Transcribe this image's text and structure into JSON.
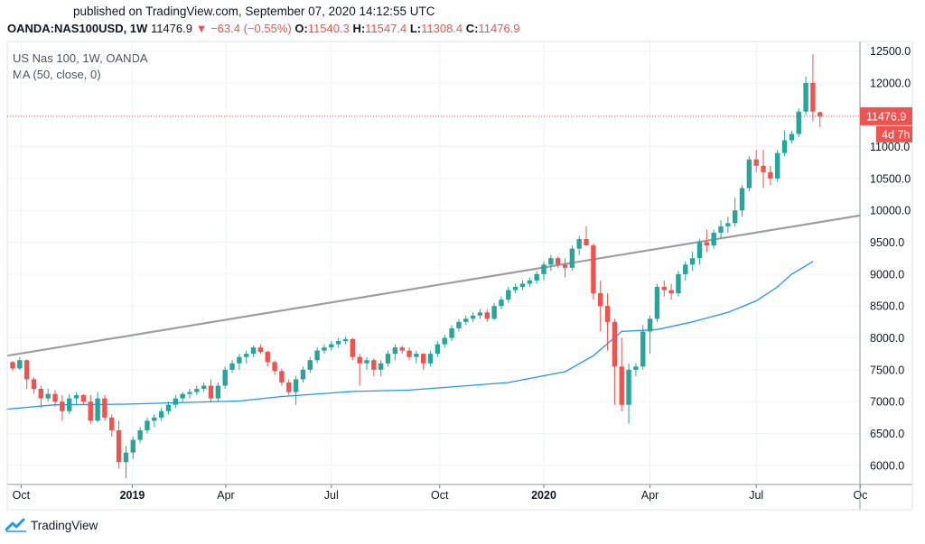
{
  "header": {
    "published": "published on TradingView.com, September 07, 2020 14:12:55 UTC",
    "symbol": "OANDA:NAS100USD, 1W",
    "last": "11476.9",
    "change": "−63.4 (−0.55%)",
    "o_label": "O:",
    "o_value": "11540.3",
    "h_label": "H:",
    "h_value": "11547.4",
    "l_label": "L:",
    "l_value": "11308.4",
    "c_label": "C:",
    "c_value": "11476.9"
  },
  "legend": {
    "title": "US Nas 100, 1W, OANDA",
    "indicator": "MA (50, close, 0)"
  },
  "footer": {
    "brand": "TradingView"
  },
  "colors": {
    "up": "#26a69a",
    "down": "#ef5350",
    "ma": "#2196f3",
    "trendline": "#9e9e9e",
    "grid": "#f0f3fa",
    "axis": "#e0e3eb",
    "text": "#131722"
  },
  "chart_data": {
    "type": "candlestick",
    "interval": "1W",
    "y_ticks": [
      "12500.0",
      "12000.0",
      "11500.0",
      "11000.0",
      "10500.0",
      "10000.0",
      "9500.0",
      "9000.0",
      "8500.0",
      "8000.0",
      "7500.0",
      "7000.0",
      "6500.0",
      "6000.0"
    ],
    "x_ticks": [
      "Oct",
      "2019",
      "Apr",
      "Jul",
      "Oct",
      "2020",
      "Apr",
      "Jul",
      "Oc"
    ],
    "ylim": [
      5700,
      12650
    ],
    "last_price_label": "11476.9",
    "countdown_label": "4d 7h",
    "candles": [
      [
        7620,
        7640,
        7480,
        7520
      ],
      [
        7520,
        7700,
        7500,
        7650
      ],
      [
        7650,
        7660,
        7200,
        7350
      ],
      [
        7350,
        7380,
        7120,
        7200
      ],
      [
        7200,
        7250,
        6900,
        7050
      ],
      [
        7050,
        7200,
        7000,
        7120
      ],
      [
        7120,
        7180,
        6920,
        7000
      ],
      [
        7000,
        7100,
        6700,
        6850
      ],
      [
        6850,
        7120,
        6800,
        7050
      ],
      [
        7050,
        7150,
        6950,
        7100
      ],
      [
        7100,
        7120,
        6950,
        7000
      ],
      [
        7000,
        7100,
        6650,
        6700
      ],
      [
        6700,
        7150,
        6680,
        7050
      ],
      [
        7050,
        7100,
        6700,
        6750
      ],
      [
        6750,
        6800,
        6450,
        6550
      ],
      [
        6550,
        6700,
        5950,
        6050
      ],
      [
        6050,
        6300,
        5800,
        6200
      ],
      [
        6200,
        6450,
        6100,
        6400
      ],
      [
        6400,
        6600,
        6350,
        6550
      ],
      [
        6550,
        6750,
        6500,
        6700
      ],
      [
        6700,
        6800,
        6600,
        6750
      ],
      [
        6750,
        6900,
        6700,
        6850
      ],
      [
        6850,
        7000,
        6800,
        6950
      ],
      [
        6950,
        7100,
        6900,
        7050
      ],
      [
        7050,
        7150,
        7000,
        7120
      ],
      [
        7120,
        7200,
        7050,
        7150
      ],
      [
        7150,
        7250,
        7100,
        7200
      ],
      [
        7200,
        7300,
        7150,
        7250
      ],
      [
        7250,
        7350,
        7000,
        7050
      ],
      [
        7050,
        7300,
        7000,
        7250
      ],
      [
        7250,
        7550,
        7200,
        7500
      ],
      [
        7500,
        7650,
        7450,
        7600
      ],
      [
        7600,
        7750,
        7500,
        7700
      ],
      [
        7700,
        7800,
        7600,
        7750
      ],
      [
        7750,
        7880,
        7700,
        7850
      ],
      [
        7850,
        7900,
        7750,
        7780
      ],
      [
        7780,
        7800,
        7550,
        7620
      ],
      [
        7620,
        7650,
        7420,
        7480
      ],
      [
        7480,
        7520,
        7250,
        7300
      ],
      [
        7300,
        7350,
        7100,
        7150
      ],
      [
        7150,
        7400,
        6950,
        7350
      ],
      [
        7350,
        7550,
        7300,
        7500
      ],
      [
        7500,
        7700,
        7450,
        7650
      ],
      [
        7650,
        7850,
        7600,
        7800
      ],
      [
        7800,
        7900,
        7750,
        7850
      ],
      [
        7850,
        7950,
        7800,
        7900
      ],
      [
        7900,
        8000,
        7850,
        7950
      ],
      [
        7950,
        8020,
        7900,
        7980
      ],
      [
        7980,
        8000,
        7650,
        7700
      ],
      [
        7700,
        7750,
        7250,
        7600
      ],
      [
        7600,
        7700,
        7500,
        7650
      ],
      [
        7650,
        7680,
        7400,
        7500
      ],
      [
        7500,
        7650,
        7400,
        7600
      ],
      [
        7600,
        7800,
        7550,
        7750
      ],
      [
        7750,
        7900,
        7650,
        7850
      ],
      [
        7850,
        7880,
        7750,
        7800
      ],
      [
        7800,
        7850,
        7650,
        7700
      ],
      [
        7700,
        7800,
        7600,
        7750
      ],
      [
        7750,
        7760,
        7500,
        7600
      ],
      [
        7600,
        7800,
        7550,
        7750
      ],
      [
        7750,
        7950,
        7700,
        7900
      ],
      [
        7900,
        8050,
        7850,
        8000
      ],
      [
        8000,
        8200,
        7950,
        8150
      ],
      [
        8150,
        8300,
        8100,
        8250
      ],
      [
        8250,
        8350,
        8200,
        8300
      ],
      [
        8300,
        8400,
        8250,
        8350
      ],
      [
        8350,
        8450,
        8300,
        8400
      ],
      [
        8400,
        8450,
        8250,
        8300
      ],
      [
        8300,
        8550,
        8280,
        8500
      ],
      [
        8500,
        8650,
        8450,
        8600
      ],
      [
        8600,
        8800,
        8550,
        8750
      ],
      [
        8750,
        8850,
        8700,
        8800
      ],
      [
        8800,
        8900,
        8750,
        8850
      ],
      [
        8850,
        8950,
        8800,
        8900
      ],
      [
        8900,
        9050,
        8850,
        9000
      ],
      [
        9000,
        9200,
        8900,
        9150
      ],
      [
        9150,
        9300,
        9050,
        9250
      ],
      [
        9250,
        9280,
        9100,
        9150
      ],
      [
        9150,
        9250,
        8950,
        9100
      ],
      [
        9100,
        9450,
        9050,
        9400
      ],
      [
        9400,
        9600,
        9300,
        9550
      ],
      [
        9550,
        9750,
        9450,
        9450
      ],
      [
        9450,
        9480,
        8600,
        8700
      ],
      [
        8700,
        8900,
        8100,
        8500
      ],
      [
        8500,
        8700,
        7800,
        8250
      ],
      [
        8250,
        8300,
        6950,
        7550
      ],
      [
        7550,
        8000,
        6850,
        6950
      ],
      [
        6950,
        7600,
        6650,
        7500
      ],
      [
        7500,
        7600,
        7400,
        7550
      ],
      [
        7550,
        8200,
        7500,
        8100
      ],
      [
        8100,
        8350,
        7750,
        8300
      ],
      [
        8300,
        8850,
        8250,
        8800
      ],
      [
        8800,
        8900,
        8650,
        8750
      ],
      [
        8750,
        8850,
        8600,
        8700
      ],
      [
        8700,
        9050,
        8650,
        9000
      ],
      [
        9000,
        9200,
        8900,
        9150
      ],
      [
        9150,
        9350,
        9050,
        9250
      ],
      [
        9250,
        9550,
        9150,
        9500
      ],
      [
        9500,
        9700,
        9350,
        9450
      ],
      [
        9450,
        9700,
        9400,
        9650
      ],
      [
        9650,
        9850,
        9550,
        9750
      ],
      [
        9750,
        9900,
        9650,
        9800
      ],
      [
        9800,
        10200,
        9750,
        10000
      ],
      [
        10000,
        10400,
        9900,
        10350
      ],
      [
        10350,
        10850,
        10300,
        10800
      ],
      [
        10800,
        10950,
        10600,
        10700
      ],
      [
        10700,
        10950,
        10350,
        10600
      ],
      [
        10600,
        10700,
        10400,
        10500
      ],
      [
        10500,
        10950,
        10450,
        10900
      ],
      [
        10900,
        11250,
        10850,
        11100
      ],
      [
        11100,
        11250,
        11050,
        11200
      ],
      [
        11200,
        11600,
        11150,
        11550
      ],
      [
        11550,
        12100,
        11500,
        12000
      ],
      [
        12000,
        12450,
        11400,
        11550
      ],
      [
        11540.3,
        11547.4,
        11308.4,
        11476.9
      ]
    ],
    "moving_average": {
      "name": "MA (50, close, 0)",
      "values": [
        [
          0,
          6880
        ],
        [
          6,
          6950
        ],
        [
          16,
          6960
        ],
        [
          22,
          6980
        ],
        [
          32,
          7010
        ],
        [
          38,
          7080
        ],
        [
          48,
          7160
        ],
        [
          56,
          7180
        ],
        [
          62,
          7230
        ],
        [
          70,
          7300
        ],
        [
          78,
          7470
        ],
        [
          82,
          7720
        ],
        [
          86,
          8100
        ],
        [
          91,
          8130
        ],
        [
          96,
          8250
        ],
        [
          101,
          8400
        ],
        [
          105,
          8580
        ],
        [
          108,
          8800
        ],
        [
          110,
          9000
        ],
        [
          112,
          9130
        ],
        [
          113,
          9200
        ]
      ]
    },
    "trendline": {
      "values": [
        [
          0,
          7720
        ],
        [
          1000,
          9920
        ]
      ]
    }
  }
}
